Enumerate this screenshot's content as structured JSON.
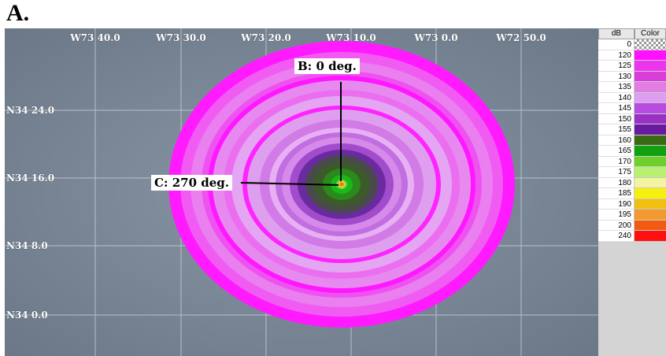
{
  "panel_letter": "A.",
  "map": {
    "longitude_labels": [
      "W73 40.0",
      "W73 30.0",
      "W73 20.0",
      "W73 10.0",
      "W73 0.0",
      "W72 50.0"
    ],
    "latitude_labels": [
      "N34 24.0",
      "N34 16.0",
      "N34 8.0",
      "N34 0.0"
    ],
    "callout_b": "B: 0 deg.",
    "callout_c": "C: 270 deg.",
    "colors": {
      "background": "#7b8898",
      "grid": "#c8d0da",
      "ring_magenta": "#ff00ff",
      "ring_pink": "#e45ae6",
      "ring_light": "#dc98ec",
      "ring_purple": "#9a3ec0",
      "core_dark": "#3d5a2a",
      "core_green": "#1aa81a",
      "source_marker": "#ff7a00"
    }
  },
  "legend": {
    "header_db": "dB",
    "header_color": "Color",
    "rows": [
      {
        "db": "0",
        "color": "checker"
      },
      {
        "db": "120",
        "color": "#ff10ff"
      },
      {
        "db": "125",
        "color": "#ee34ee"
      },
      {
        "db": "130",
        "color": "#d93ed9"
      },
      {
        "db": "135",
        "color": "#e07ee4"
      },
      {
        "db": "140",
        "color": "#dd9df2"
      },
      {
        "db": "145",
        "color": "#b84ce0"
      },
      {
        "db": "150",
        "color": "#9a30c4"
      },
      {
        "db": "155",
        "color": "#6a1aa0"
      },
      {
        "db": "160",
        "color": "#3b6a14"
      },
      {
        "db": "165",
        "color": "#10a010"
      },
      {
        "db": "170",
        "color": "#6ed02a"
      },
      {
        "db": "175",
        "color": "#b8f070"
      },
      {
        "db": "180",
        "color": "#f4f4a0"
      },
      {
        "db": "185",
        "color": "#f6f010"
      },
      {
        "db": "190",
        "color": "#f2c010"
      },
      {
        "db": "195",
        "color": "#f29a30"
      },
      {
        "db": "200",
        "color": "#f25a10"
      },
      {
        "db": "240",
        "color": "#ff1010"
      }
    ]
  }
}
